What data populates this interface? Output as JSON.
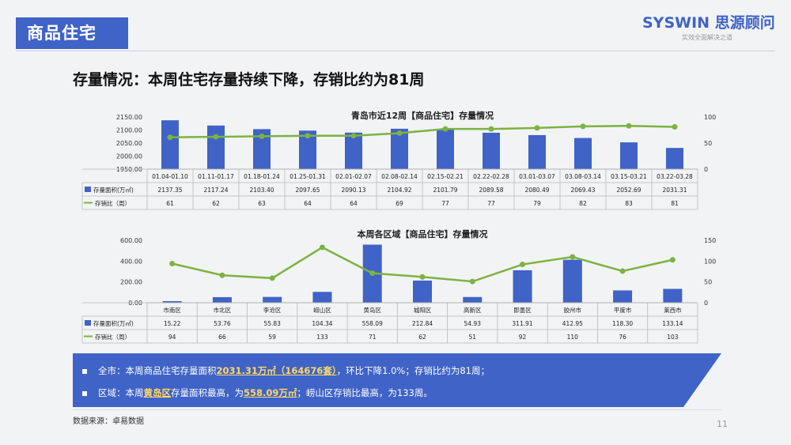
{
  "header": {
    "section_title": "商品住宅",
    "brand_latin": "SYSWIN",
    "brand_cn": "思源顾问",
    "brand_tagline": "实效全面解决之道"
  },
  "headline": "存量情况：本周住宅存量持续下降，存销比约为81周",
  "colors": {
    "bar": "#3f63c6",
    "line": "#7cb342",
    "accent": "#ffd966"
  },
  "chart_data": [
    {
      "type": "bar",
      "title": "青岛市近12周【商品住宅】存量情况",
      "categories": [
        "01.04-01.10",
        "01.11-01.17",
        "01.18-01.24",
        "01.25-01.31",
        "02.01-02.07",
        "02.08-02.14",
        "02.15-02.21",
        "02.22-02.28",
        "03.01-03.07",
        "03.08-03.14",
        "03.15-03.21",
        "03.22-03.28"
      ],
      "series": [
        {
          "name": "存量面积(万㎡)",
          "type": "bar",
          "axis": "left",
          "values": [
            2137.35,
            2117.24,
            2103.4,
            2097.65,
            2090.13,
            2104.92,
            2101.79,
            2089.58,
            2080.49,
            2069.43,
            2052.69,
            2031.31
          ],
          "labels": [
            "2137.35",
            "2117.24",
            "2103.40",
            "2097.65",
            "2090.13",
            "2104.92",
            "2101.79",
            "2089.58",
            "2080.49",
            "2069.43",
            "2052.69",
            "2031.31"
          ]
        },
        {
          "name": "存销比（周）",
          "type": "line",
          "axis": "right",
          "values": [
            61,
            62,
            63,
            64,
            64,
            69,
            77,
            77,
            79,
            82,
            83,
            81
          ],
          "labels": [
            "61",
            "62",
            "63",
            "64",
            "64",
            "69",
            "77",
            "77",
            "79",
            "82",
            "83",
            "81"
          ]
        }
      ],
      "ylim": [
        1950,
        2150
      ],
      "yticks": [
        "2150.00",
        "2100.00",
        "2050.00",
        "2000.00",
        "1950.00"
      ],
      "y2lim": [
        0,
        100
      ],
      "y2ticks": [
        "100",
        "50",
        "0"
      ],
      "grid": false,
      "legend": "data-table"
    },
    {
      "type": "bar",
      "title": "本周各区域【商品住宅】存量情况",
      "categories": [
        "市南区",
        "市北区",
        "李沧区",
        "崂山区",
        "黄岛区",
        "城阳区",
        "高新区",
        "即墨区",
        "胶州市",
        "平度市",
        "莱西市"
      ],
      "series": [
        {
          "name": "存量面积(万㎡)",
          "type": "bar",
          "axis": "left",
          "values": [
            15.22,
            53.76,
            55.83,
            104.34,
            558.09,
            212.84,
            54.93,
            311.91,
            412.95,
            118.3,
            133.14
          ],
          "labels": [
            "15.22",
            "53.76",
            "55.83",
            "104.34",
            "558.09",
            "212.84",
            "54.93",
            "311.91",
            "412.95",
            "118.30",
            "133.14"
          ]
        },
        {
          "name": "存销比（周）",
          "type": "line",
          "axis": "right",
          "values": [
            94,
            66,
            59,
            133,
            71,
            62,
            51,
            92,
            110,
            76,
            103
          ],
          "labels": [
            "94",
            "66",
            "59",
            "133",
            "71",
            "62",
            "51",
            "92",
            "110",
            "76",
            "103"
          ]
        }
      ],
      "ylim": [
        0,
        600
      ],
      "yticks": [
        "600.00",
        "400.00",
        "200.00",
        "0.00"
      ],
      "y2lim": [
        0,
        150
      ],
      "y2ticks": [
        "150",
        "100",
        "50",
        "0"
      ],
      "grid": false,
      "legend": "data-table"
    }
  ],
  "summary": {
    "line1": {
      "pre": "全市：本周商品住宅存量面积",
      "hl": "2031.31万㎡（164676套）",
      "post": "，环比下降1.0%；存销比约为81周；"
    },
    "line2": {
      "pre": "区域：本周",
      "hl1": "黄岛区",
      "mid": "存量面积最高，为",
      "hl2": "558.09万㎡",
      "post": "；崂山区存销比最高，为133周。"
    }
  },
  "footer": {
    "source": "数据来源：卓易数据",
    "page": "11"
  }
}
